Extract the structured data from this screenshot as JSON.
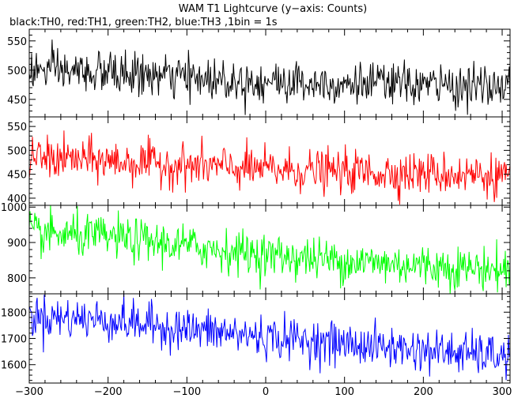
{
  "chart_data": {
    "type": "line",
    "title": "WAM T1 Lightcurve (y−axis: Counts)",
    "subtitle": "black:TH0, red:TH1, green:TH2, blue:TH3 ,1bin = 1s",
    "xlabel": "",
    "ylabel": "",
    "xlim": [
      -300,
      310
    ],
    "x_ticks": [
      -300,
      -200,
      -100,
      0,
      100,
      200,
      300
    ],
    "x_tick_labels": [
      "−300",
      "−200",
      "−100",
      "0",
      "100",
      "200",
      "300"
    ],
    "bin_seconds": 1,
    "grid": false,
    "panels": [
      {
        "color": "#000000",
        "ylim": [
          420,
          570
        ],
        "y_ticks": [
          450,
          500,
          550
        ],
        "trend": [
          {
            "x": -300,
            "y": 500
          },
          {
            "x": -200,
            "y": 495
          },
          {
            "x": -100,
            "y": 487
          },
          {
            "x": 0,
            "y": 480
          },
          {
            "x": 100,
            "y": 478
          },
          {
            "x": 200,
            "y": 475
          },
          {
            "x": 310,
            "y": 470
          }
        ],
        "noise_sd": 18
      },
      {
        "color": "#ff0000",
        "ylim": [
          385,
          570
        ],
        "y_ticks": [
          400,
          450,
          500,
          550
        ],
        "trend": [
          {
            "x": -300,
            "y": 485
          },
          {
            "x": -200,
            "y": 478
          },
          {
            "x": -100,
            "y": 468
          },
          {
            "x": 0,
            "y": 460
          },
          {
            "x": 100,
            "y": 455
          },
          {
            "x": 200,
            "y": 452
          },
          {
            "x": 310,
            "y": 447
          }
        ],
        "noise_sd": 22
      },
      {
        "color": "#00ff00",
        "ylim": [
          755,
          1005
        ],
        "y_ticks": [
          800,
          900,
          1000
        ],
        "trend": [
          {
            "x": -300,
            "y": 925
          },
          {
            "x": -200,
            "y": 915
          },
          {
            "x": -100,
            "y": 890
          },
          {
            "x": 0,
            "y": 865
          },
          {
            "x": 100,
            "y": 848
          },
          {
            "x": 200,
            "y": 835
          },
          {
            "x": 310,
            "y": 822
          }
        ],
        "noise_sd": 30
      },
      {
        "color": "#0000ff",
        "ylim": [
          1530,
          1870
        ],
        "y_ticks": [
          1600,
          1700,
          1800
        ],
        "trend": [
          {
            "x": -300,
            "y": 1785
          },
          {
            "x": -200,
            "y": 1770
          },
          {
            "x": -100,
            "y": 1735
          },
          {
            "x": 0,
            "y": 1705
          },
          {
            "x": 100,
            "y": 1680
          },
          {
            "x": 200,
            "y": 1655
          },
          {
            "x": 310,
            "y": 1630
          }
        ],
        "noise_sd": 40
      }
    ]
  }
}
